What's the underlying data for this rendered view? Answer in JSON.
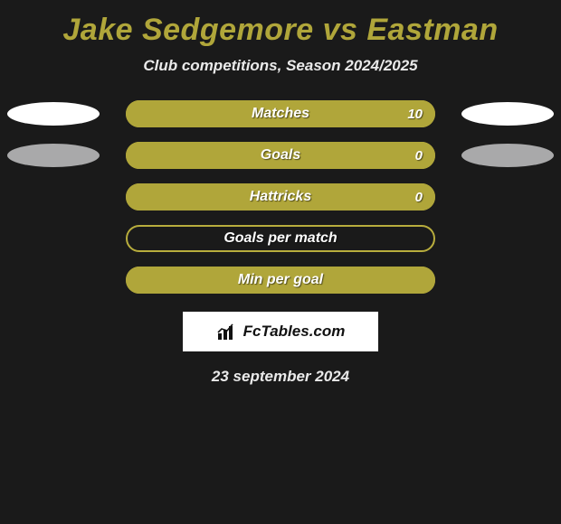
{
  "title": "Jake Sedgemore vs Eastman",
  "subtitle": "Club competitions, Season 2024/2025",
  "colors": {
    "accent": "#b0a63a",
    "accent_border": "#b8ad3d",
    "bg": "#1a1a1a",
    "text_light": "#eaeaea",
    "white": "#ffffff",
    "gray": "#a9a9aa"
  },
  "stats": [
    {
      "label": "Matches",
      "value": "10",
      "fill_pct": 100,
      "show_value": true,
      "left_oval": "white",
      "right_oval": "white"
    },
    {
      "label": "Goals",
      "value": "0",
      "fill_pct": 100,
      "show_value": true,
      "left_oval": "gray",
      "right_oval": "gray"
    },
    {
      "label": "Hattricks",
      "value": "0",
      "fill_pct": 100,
      "show_value": true,
      "left_oval": null,
      "right_oval": null
    },
    {
      "label": "Goals per match",
      "value": "",
      "fill_pct": 0,
      "show_value": false,
      "left_oval": null,
      "right_oval": null
    },
    {
      "label": "Min per goal",
      "value": "",
      "fill_pct": 100,
      "show_value": false,
      "left_oval": null,
      "right_oval": null
    }
  ],
  "brand": {
    "name": "FcTables.com"
  },
  "date": "23 september 2024"
}
